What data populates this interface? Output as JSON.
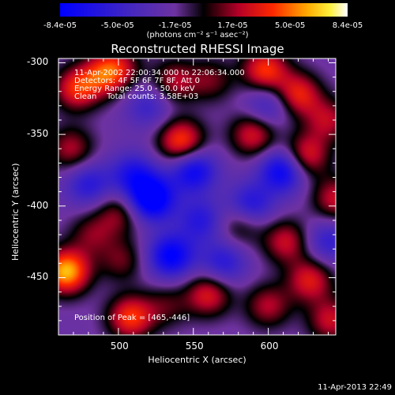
{
  "chart_data": {
    "type": "heatmap",
    "title": "Reconstructed RHESSI Image",
    "xlabel": "Heliocentric X (arcsec)",
    "ylabel": "Heliocentric Y (arcsec)",
    "xlim": [
      460,
      645
    ],
    "ylim": [
      -490,
      -297
    ],
    "xticks": [
      500,
      550,
      600
    ],
    "yticks": [
      -300,
      -350,
      -400,
      -450
    ],
    "colorbar": {
      "ticks": [
        "-8.4e-05",
        "-5.0e-05",
        "-1.7e-05",
        "1.7e-05",
        "5.0e-05",
        "8.4e-05"
      ],
      "min": -8.4e-05,
      "max": 8.4e-05,
      "units": "(photons cm⁻² s⁻¹ asec⁻²)"
    },
    "annotations": {
      "time_range": "11-Apr-2002 22:00:34.000 to 22:06:34.000",
      "detectors": "Detectors: 4F 5F 6F 7F 8F, Att 0",
      "energy": "Energy Range: 25.0 - 50.0 keV",
      "clean_counts": "Clean    Total counts: 3.58E+03",
      "peak": "Position of Peak = [465,-446]"
    },
    "peak_position": [
      465,
      -446
    ],
    "sources": [
      {
        "x": 465,
        "y": -446,
        "value": 8.4e-05
      },
      {
        "x": 472,
        "y": -318,
        "value": 5.5e-05
      },
      {
        "x": 490,
        "y": -308,
        "value": 4.5e-05
      },
      {
        "x": 500,
        "y": -303,
        "value": 3.5e-05
      },
      {
        "x": 537,
        "y": -313,
        "value": 4e-05
      },
      {
        "x": 562,
        "y": -312,
        "value": 3e-05
      },
      {
        "x": 598,
        "y": -305,
        "value": 6e-05
      },
      {
        "x": 620,
        "y": -322,
        "value": 5.5e-05
      },
      {
        "x": 640,
        "y": -340,
        "value": 4e-05
      },
      {
        "x": 468,
        "y": -360,
        "value": 4e-05
      },
      {
        "x": 542,
        "y": -355,
        "value": 6.5e-05
      },
      {
        "x": 590,
        "y": -350,
        "value": 5e-05
      },
      {
        "x": 625,
        "y": -365,
        "value": 5.5e-05
      },
      {
        "x": 645,
        "y": -395,
        "value": 4.5e-05
      },
      {
        "x": 500,
        "y": -405,
        "value": 3.5e-05
      },
      {
        "x": 582,
        "y": -412,
        "value": 3.5e-05
      },
      {
        "x": 612,
        "y": -425,
        "value": 4.5e-05
      },
      {
        "x": 502,
        "y": -438,
        "value": 3e-05
      },
      {
        "x": 482,
        "y": -420,
        "value": 3e-05
      },
      {
        "x": 532,
        "y": -470,
        "value": 2.5e-05
      },
      {
        "x": 508,
        "y": -478,
        "value": 6e-05
      },
      {
        "x": 560,
        "y": -462,
        "value": 5e-05
      },
      {
        "x": 600,
        "y": -470,
        "value": 4e-05
      },
      {
        "x": 628,
        "y": -452,
        "value": 5e-05
      },
      {
        "x": 642,
        "y": -480,
        "value": 4.5e-05
      },
      {
        "x": 522,
        "y": -395,
        "value": -8e-05
      },
      {
        "x": 550,
        "y": -375,
        "value": -6e-05
      },
      {
        "x": 510,
        "y": -378,
        "value": -4.5e-05
      },
      {
        "x": 535,
        "y": -435,
        "value": -6.5e-05
      },
      {
        "x": 610,
        "y": -375,
        "value": -6.5e-05
      },
      {
        "x": 588,
        "y": -400,
        "value": -5e-05
      },
      {
        "x": 555,
        "y": -410,
        "value": -4e-05
      },
      {
        "x": 480,
        "y": -385,
        "value": -4e-05
      },
      {
        "x": 600,
        "y": -330,
        "value": -3.5e-05
      },
      {
        "x": 640,
        "y": -425,
        "value": -3.5e-05
      },
      {
        "x": 520,
        "y": -330,
        "value": -3e-05
      },
      {
        "x": 570,
        "y": -440,
        "value": -4e-05
      }
    ]
  },
  "timestamp": "11-Apr-2013 22:49"
}
